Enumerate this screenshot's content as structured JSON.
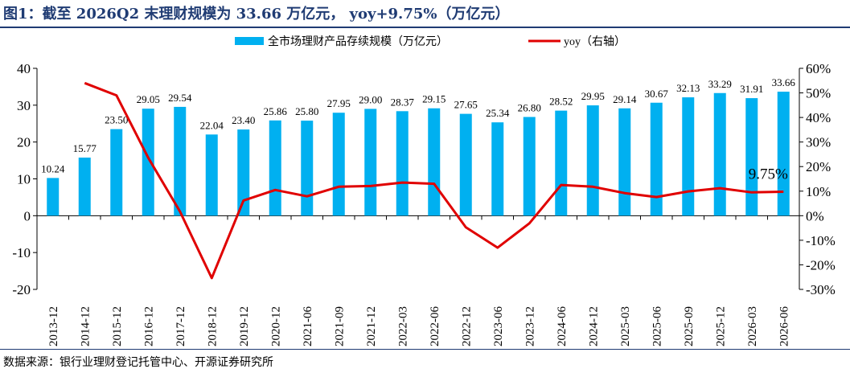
{
  "header": {
    "title": "图1：截至 2026Q2 末理财规模为 33.66 万亿元， yoy+9.75%（万亿元）"
  },
  "footer": {
    "source": "数据来源：银行业理财登记托管中心、开源证券研究所"
  },
  "colors": {
    "bar": "#00b0f0",
    "line": "#e00000",
    "title": "#1f3b73"
  },
  "chart_data": {
    "type": "bar",
    "categories": [
      "2013-12",
      "2014-12",
      "2015-12",
      "2016-12",
      "2017-12",
      "2018-12",
      "2019-12",
      "2020-12",
      "2021-06",
      "2021-09",
      "2021-12",
      "2022-03",
      "2022-06",
      "2022-12",
      "2023-06",
      "2023-12",
      "2024-06",
      "2024-12",
      "2025-03",
      "2025-06",
      "2025-09",
      "2025-12",
      "2026-03",
      "2026-06"
    ],
    "series": [
      {
        "name": "全市场理财产品存续规模（万亿元）",
        "type": "bar",
        "axis": "left",
        "values": [
          10.24,
          15.77,
          23.5,
          29.05,
          29.54,
          22.04,
          23.4,
          25.86,
          25.8,
          27.95,
          29.0,
          28.37,
          29.15,
          27.65,
          25.34,
          26.8,
          28.52,
          29.95,
          29.14,
          30.67,
          32.13,
          33.29,
          31.91,
          33.66
        ],
        "labels": [
          "10.24",
          "15.77",
          "23.50",
          "29.05",
          "29.54",
          "22.04",
          "23.40",
          "25.86",
          "25.80",
          "27.95",
          "29.00",
          "28.37",
          "29.15",
          "27.65",
          "25.34",
          "26.80",
          "28.52",
          "29.95",
          "29.14",
          "30.67",
          "32.13",
          "33.29",
          "31.91",
          "33.66"
        ]
      },
      {
        "name": "yoy（右轴）",
        "type": "line",
        "axis": "right",
        "values": [
          null,
          54.0,
          49.0,
          23.6,
          1.7,
          -25.4,
          6.2,
          10.5,
          7.9,
          11.8,
          12.1,
          13.5,
          13.0,
          -4.7,
          -13.0,
          -3.1,
          12.5,
          11.8,
          9.2,
          7.6,
          9.9,
          11.2,
          9.5,
          9.75
        ]
      }
    ],
    "annotation": "9.75%",
    "y_left": {
      "min": -20,
      "max": 40,
      "ticks": [
        -20,
        -10,
        0,
        10,
        20,
        30,
        40
      ],
      "tick_labels": [
        "-20",
        "-10",
        "0",
        "10",
        "20",
        "30",
        "40"
      ]
    },
    "y_right": {
      "min": -30,
      "max": 60,
      "ticks": [
        -30,
        -20,
        -10,
        0,
        10,
        20,
        30,
        40,
        50,
        60
      ],
      "tick_labels": [
        "-30%",
        "-20%",
        "-10%",
        "0%",
        "10%",
        "20%",
        "30%",
        "40%",
        "50%",
        "60%"
      ]
    },
    "grid": false,
    "legend": "top-center"
  }
}
